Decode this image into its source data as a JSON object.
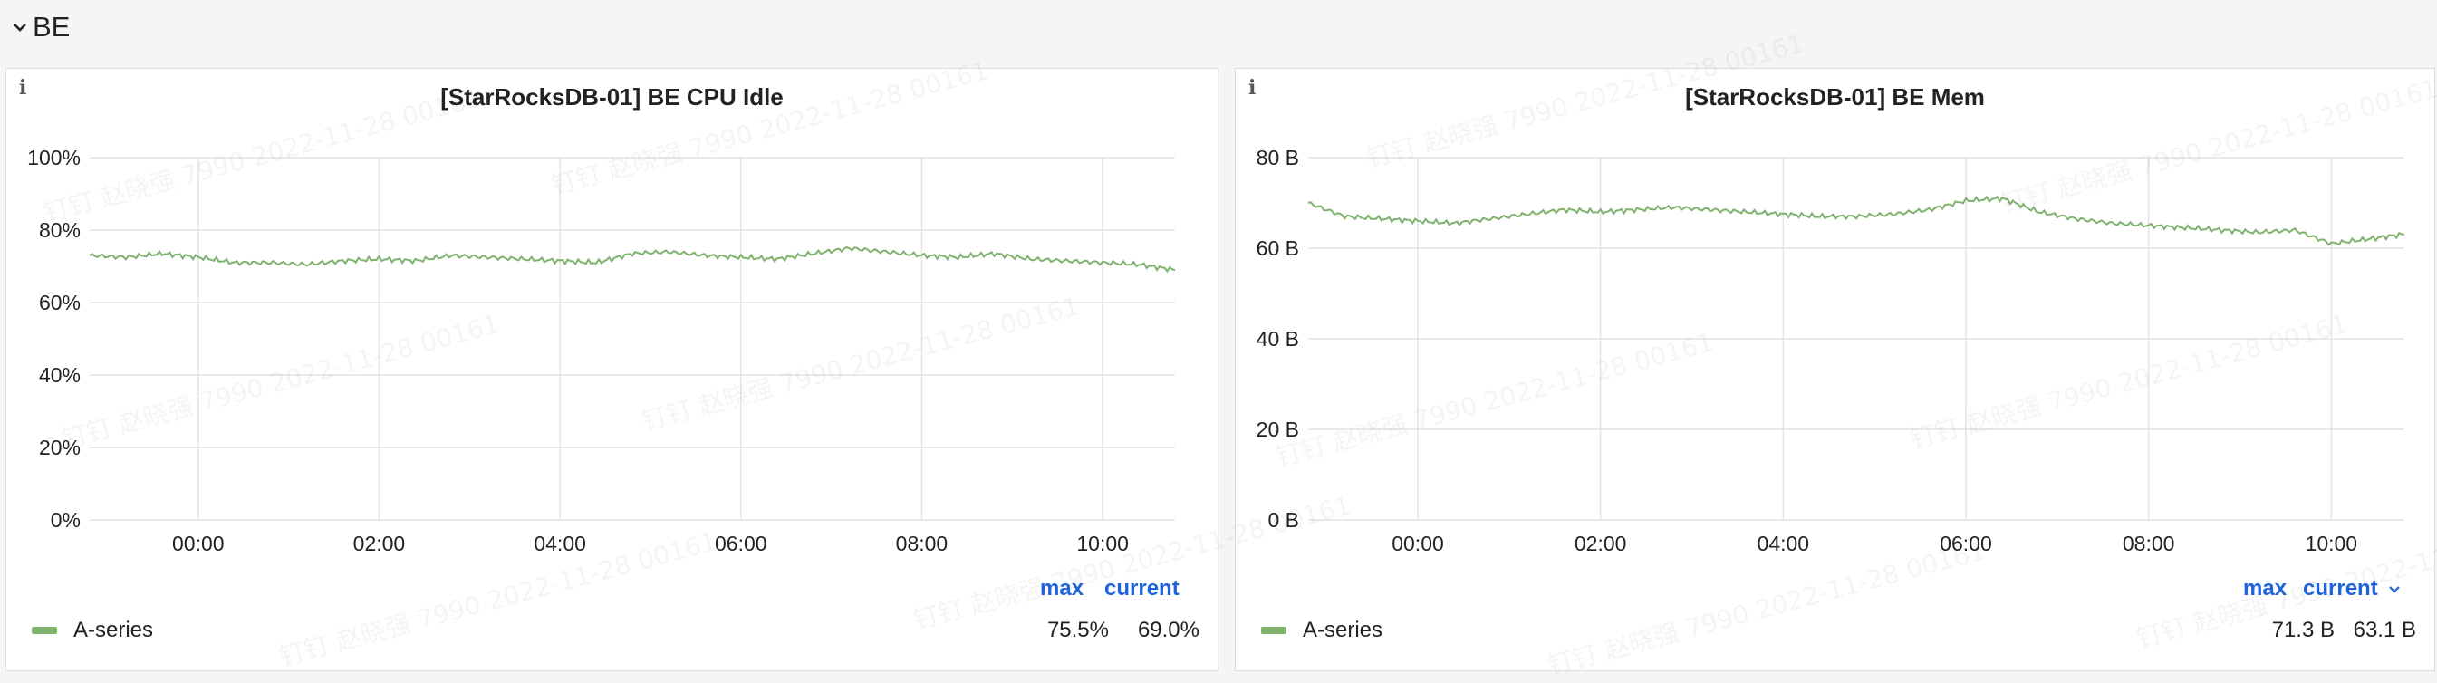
{
  "row": {
    "title": "BE",
    "collapse_icon": "chevron-down-icon"
  },
  "watermark_text": "钉钉 赵晓强 7990 2022-11-28 00161",
  "panels": [
    {
      "title": "[StarRocksDB-01] BE CPU Idle",
      "info_icon": "info-icon",
      "legend": {
        "headers": [
          "max",
          "current"
        ],
        "series_name": "A-series",
        "max": "75.5%",
        "current": "69.0%"
      }
    },
    {
      "title": "[StarRocksDB-01] BE Mem",
      "info_icon": "info-icon",
      "legend": {
        "headers": [
          "max",
          "current"
        ],
        "sort_icon": "chevron-down-icon",
        "series_name": "A-series",
        "max": "71.3 B",
        "current": "63.1 B"
      }
    }
  ],
  "chart_data": [
    {
      "type": "line",
      "title": "[StarRocksDB-01] BE CPU Idle",
      "xlabel": "",
      "ylabel": "",
      "x_ticks": [
        "00:00",
        "02:00",
        "04:00",
        "06:00",
        "08:00",
        "10:00"
      ],
      "y_ticks": [
        "0%",
        "20%",
        "40%",
        "60%",
        "80%",
        "100%"
      ],
      "ylim": [
        0,
        100
      ],
      "x_range_hours": [
        -1.2,
        10.8
      ],
      "grid": true,
      "legend_placement": "bottom",
      "series": [
        {
          "name": "A-series",
          "color": "#7eb26d",
          "x_hours": [
            -1.2,
            -0.8,
            -0.4,
            0.0,
            0.4,
            0.8,
            1.2,
            1.6,
            2.0,
            2.4,
            2.8,
            3.2,
            3.6,
            4.0,
            4.4,
            4.8,
            5.2,
            5.6,
            6.0,
            6.4,
            6.8,
            7.2,
            7.6,
            8.0,
            8.4,
            8.8,
            9.2,
            9.6,
            10.0,
            10.4,
            10.8
          ],
          "values": [
            73.0,
            72.5,
            73.5,
            72.5,
            71.0,
            71.0,
            70.5,
            71.5,
            72.0,
            71.5,
            73.0,
            72.5,
            72.0,
            71.5,
            71.0,
            73.5,
            74.0,
            73.0,
            72.5,
            72.0,
            73.5,
            75.0,
            74.0,
            73.0,
            72.5,
            73.5,
            72.0,
            71.5,
            71.0,
            70.5,
            69.0
          ]
        }
      ]
    },
    {
      "type": "line",
      "title": "[StarRocksDB-01] BE Mem",
      "xlabel": "",
      "ylabel": "",
      "x_ticks": [
        "00:00",
        "02:00",
        "04:00",
        "06:00",
        "08:00",
        "10:00"
      ],
      "y_ticks": [
        "0 B",
        "20 B",
        "40 B",
        "60 B",
        "80 B"
      ],
      "ylim": [
        0,
        80
      ],
      "x_range_hours": [
        -1.2,
        10.8
      ],
      "grid": true,
      "legend_placement": "bottom",
      "series": [
        {
          "name": "A-series",
          "color": "#7eb26d",
          "x_hours": [
            -1.2,
            -0.8,
            -0.4,
            0.0,
            0.4,
            0.8,
            1.2,
            1.6,
            2.0,
            2.4,
            2.8,
            3.2,
            3.6,
            4.0,
            4.4,
            4.8,
            5.2,
            5.6,
            6.0,
            6.4,
            6.8,
            7.2,
            7.6,
            8.0,
            8.4,
            8.8,
            9.2,
            9.6,
            10.0,
            10.4,
            10.8
          ],
          "values": [
            70.0,
            67.0,
            66.5,
            66.0,
            65.5,
            66.5,
            67.5,
            68.5,
            68.0,
            68.5,
            69.0,
            68.5,
            68.0,
            67.5,
            67.0,
            67.0,
            67.5,
            68.5,
            70.5,
            71.0,
            68.0,
            66.5,
            65.5,
            65.0,
            64.5,
            64.0,
            63.5,
            64.0,
            61.0,
            62.0,
            63.1
          ]
        }
      ]
    }
  ]
}
